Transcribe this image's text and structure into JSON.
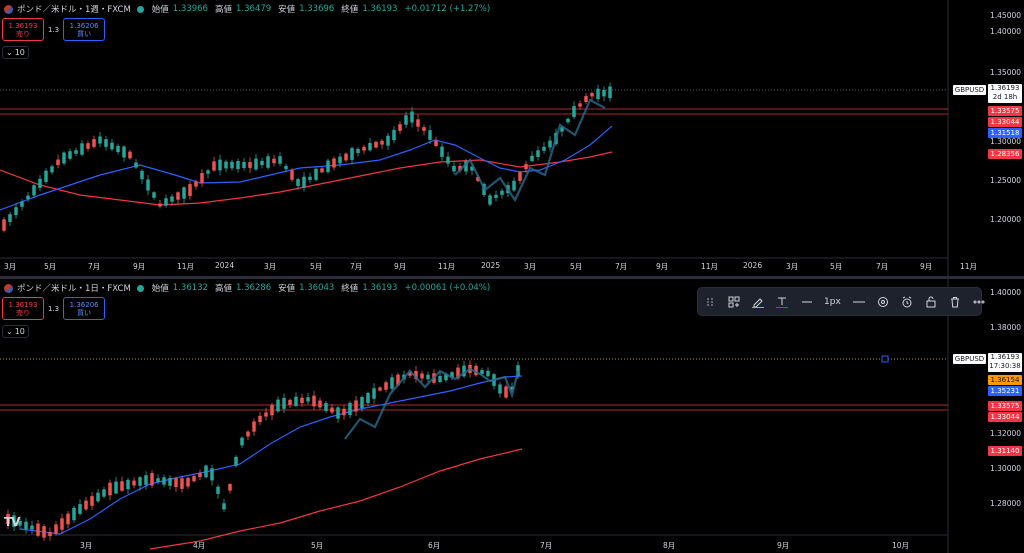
{
  "top": {
    "symbol": "ポンド／米ドル・1週・FXCM",
    "ohlc": [
      {
        "k": "始値",
        "v": "1.33966"
      },
      {
        "k": "高値",
        "v": "1.36479"
      },
      {
        "k": "安値",
        "v": "1.33696"
      },
      {
        "k": "終値",
        "v": "1.36193"
      }
    ],
    "change": "+0.01712 (+1.27%)",
    "sell_price": "1.36193",
    "sell_label": "売り",
    "spread": "1.3",
    "buy_price": "1.36206",
    "buy_label": "買い",
    "indicator_count": "10",
    "price_axis": [
      "1.45000",
      "1.40000",
      "1.35000",
      "1.30000",
      "1.25000",
      "1.20000"
    ],
    "time_axis": [
      "3月",
      "5月",
      "7月",
      "9月",
      "11月",
      "2024",
      "3月",
      "5月",
      "7月",
      "9月",
      "11月",
      "2025",
      "3月",
      "5月",
      "7月",
      "9月",
      "11月",
      "2026",
      "3月",
      "5月",
      "7月",
      "9月",
      "11月"
    ],
    "symbol_tag": "GBPUSD",
    "current_price": "1.36193",
    "countdown": "2d 18h",
    "tags": [
      "1.33575",
      "1.33044",
      "1.31518",
      "1.28356"
    ]
  },
  "bottom": {
    "symbol": "ポンド／米ドル・1日・FXCM",
    "ohlc": [
      {
        "k": "始値",
        "v": "1.36132"
      },
      {
        "k": "高値",
        "v": "1.36286"
      },
      {
        "k": "安値",
        "v": "1.36043"
      },
      {
        "k": "終値",
        "v": "1.36193"
      }
    ],
    "change": "+0.00061 (+0.04%)",
    "sell_price": "1.36193",
    "sell_label": "売り",
    "spread": "1.3",
    "buy_price": "1.36206",
    "buy_label": "買い",
    "indicator_count": "10",
    "price_axis": [
      "1.40000",
      "1.38000",
      "1.32000",
      "1.30000",
      "1.28000"
    ],
    "time_axis": [
      "3月",
      "4月",
      "5月",
      "6月",
      "7月",
      "8月",
      "9月",
      "10月"
    ],
    "symbol_tag": "GBPUSD",
    "current_price": "1.36193",
    "countdown": "17:30:38",
    "tags": [
      "1.36154",
      "1.35231",
      "1.33575",
      "1.33044",
      "1.31140"
    ],
    "toolbar_width_label": "1px"
  },
  "colors": {
    "up": "#26a69a",
    "down": "#ef5350",
    "ma_blue": "#2962ff",
    "ma_red": "#f23645",
    "level_red": "#b2242c",
    "price_line": "#f5c542",
    "tag_red": "#f23645",
    "tag_blue": "#2962ff",
    "tag_orange": "#ff9800"
  },
  "tv_logo": "TV"
}
